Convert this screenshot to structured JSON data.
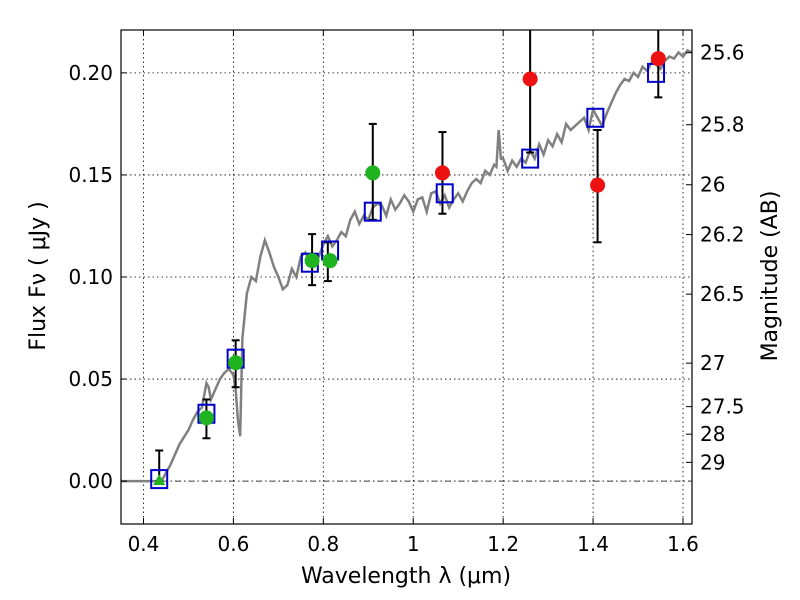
{
  "chart_data": {
    "type": "scatter",
    "xlabel": "Wavelength  λ (μm)",
    "ylabel": "Flux  Fν ( μJy )",
    "ylabel_right": "Magnitude (AB)",
    "xlim": [
      0.35,
      1.62
    ],
    "ylim": [
      -0.021,
      0.221
    ],
    "x_ticks": [
      0.4,
      0.6,
      0.8,
      1.0,
      1.2,
      1.4,
      1.6
    ],
    "x_tick_labels": [
      "0.4",
      "0.6",
      "0.8",
      "1",
      "1.2",
      "1.4",
      "1.6"
    ],
    "y_ticks": [
      0.0,
      0.05,
      0.1,
      0.15,
      0.2
    ],
    "y_tick_labels": [
      "0.00",
      "0.05",
      "0.10",
      "0.15",
      "0.20"
    ],
    "right_ticks": [
      {
        "label": "25.6",
        "flux": 0.2099
      },
      {
        "label": "25.8",
        "flux": 0.1746
      },
      {
        "label": "26",
        "flux": 0.1452
      },
      {
        "label": "26.2",
        "flux": 0.1208
      },
      {
        "label": "26.5",
        "flux": 0.0916
      },
      {
        "label": "27",
        "flux": 0.0578
      },
      {
        "label": "27.5",
        "flux": 0.0365
      },
      {
        "label": "28",
        "flux": 0.023
      },
      {
        "label": "29",
        "flux": 0.0092
      }
    ],
    "grid": true,
    "zero_line": 0.0,
    "model_spectrum": {
      "color": "#808080",
      "x": [
        0.35,
        0.43,
        0.44,
        0.46,
        0.48,
        0.5,
        0.51,
        0.52,
        0.53,
        0.54,
        0.545,
        0.55,
        0.56,
        0.57,
        0.58,
        0.59,
        0.6,
        0.605,
        0.61,
        0.615,
        0.62,
        0.63,
        0.64,
        0.65,
        0.66,
        0.67,
        0.68,
        0.69,
        0.7,
        0.71,
        0.72,
        0.73,
        0.74,
        0.75,
        0.76,
        0.77,
        0.78,
        0.79,
        0.8,
        0.81,
        0.82,
        0.83,
        0.84,
        0.85,
        0.86,
        0.87,
        0.88,
        0.89,
        0.9,
        0.91,
        0.92,
        0.93,
        0.94,
        0.95,
        0.96,
        0.97,
        0.98,
        0.99,
        1.0,
        1.01,
        1.02,
        1.03,
        1.04,
        1.05,
        1.06,
        1.07,
        1.08,
        1.09,
        1.1,
        1.11,
        1.12,
        1.13,
        1.14,
        1.15,
        1.16,
        1.17,
        1.18,
        1.185,
        1.19,
        1.195,
        1.2,
        1.21,
        1.22,
        1.23,
        1.24,
        1.25,
        1.26,
        1.27,
        1.28,
        1.29,
        1.3,
        1.31,
        1.32,
        1.33,
        1.34,
        1.35,
        1.36,
        1.37,
        1.38,
        1.39,
        1.4,
        1.41,
        1.42,
        1.43,
        1.44,
        1.45,
        1.46,
        1.47,
        1.48,
        1.49,
        1.5,
        1.51,
        1.52,
        1.53,
        1.54,
        1.55,
        1.56,
        1.57,
        1.58,
        1.59,
        1.6,
        1.61,
        1.62
      ],
      "y": [
        0.0,
        0.0,
        0.0,
        0.008,
        0.018,
        0.025,
        0.03,
        0.034,
        0.036,
        0.048,
        0.046,
        0.04,
        0.045,
        0.05,
        0.053,
        0.055,
        0.052,
        0.045,
        0.03,
        0.022,
        0.07,
        0.092,
        0.1,
        0.098,
        0.11,
        0.118,
        0.112,
        0.105,
        0.1,
        0.094,
        0.096,
        0.104,
        0.1,
        0.11,
        0.112,
        0.108,
        0.106,
        0.11,
        0.116,
        0.12,
        0.115,
        0.118,
        0.122,
        0.12,
        0.128,
        0.132,
        0.126,
        0.13,
        0.128,
        0.134,
        0.136,
        0.135,
        0.13,
        0.138,
        0.133,
        0.136,
        0.14,
        0.137,
        0.132,
        0.138,
        0.139,
        0.132,
        0.141,
        0.142,
        0.136,
        0.14,
        0.134,
        0.138,
        0.141,
        0.137,
        0.142,
        0.146,
        0.148,
        0.146,
        0.152,
        0.15,
        0.155,
        0.154,
        0.172,
        0.158,
        0.158,
        0.152,
        0.157,
        0.154,
        0.158,
        0.156,
        0.162,
        0.158,
        0.165,
        0.16,
        0.167,
        0.164,
        0.17,
        0.166,
        0.175,
        0.172,
        0.174,
        0.176,
        0.178,
        0.172,
        0.182,
        0.178,
        0.174,
        0.18,
        0.185,
        0.19,
        0.194,
        0.197,
        0.196,
        0.2,
        0.198,
        0.203,
        0.201,
        0.205,
        0.204,
        0.202,
        0.206,
        0.208,
        0.207,
        0.21,
        0.208,
        0.211,
        0.21
      ]
    },
    "error_bars": [
      {
        "x": 0.435,
        "low": 0.0,
        "high": 0.015
      },
      {
        "x": 0.54,
        "low": 0.021,
        "high": 0.04
      },
      {
        "x": 0.605,
        "low": 0.046,
        "high": 0.069
      },
      {
        "x": 0.775,
        "low": 0.096,
        "high": 0.121
      },
      {
        "x": 0.81,
        "low": 0.098,
        "high": 0.117
      },
      {
        "x": 0.91,
        "low": 0.128,
        "high": 0.175
      },
      {
        "x": 1.065,
        "low": 0.131,
        "high": 0.171
      },
      {
        "x": 1.26,
        "low": 0.161,
        "high": 0.221
      },
      {
        "x": 1.41,
        "low": 0.117,
        "high": 0.172
      },
      {
        "x": 1.545,
        "low": 0.188,
        "high": 0.221
      }
    ],
    "model_boxes": {
      "color": "#0000cc",
      "points": [
        {
          "x": 0.435,
          "y": 0.001
        },
        {
          "x": 0.54,
          "y": 0.033
        },
        {
          "x": 0.605,
          "y": 0.06
        },
        {
          "x": 0.77,
          "y": 0.107
        },
        {
          "x": 0.815,
          "y": 0.113
        },
        {
          "x": 0.91,
          "y": 0.132
        },
        {
          "x": 1.07,
          "y": 0.141
        },
        {
          "x": 1.26,
          "y": 0.158
        },
        {
          "x": 1.405,
          "y": 0.178
        },
        {
          "x": 1.54,
          "y": 0.2
        }
      ]
    },
    "green_points": {
      "color": "#1fb41f",
      "points": [
        {
          "x": 0.54,
          "y": 0.031
        },
        {
          "x": 0.605,
          "y": 0.058
        },
        {
          "x": 0.775,
          "y": 0.108
        },
        {
          "x": 0.815,
          "y": 0.108
        },
        {
          "x": 0.91,
          "y": 0.151
        }
      ]
    },
    "green_triangle": {
      "color": "#1fb41f",
      "x": 0.435,
      "y": 0.0
    },
    "red_points": {
      "color": "#ee1111",
      "points": [
        {
          "x": 1.065,
          "y": 0.151
        },
        {
          "x": 1.26,
          "y": 0.197
        },
        {
          "x": 1.41,
          "y": 0.145
        },
        {
          "x": 1.545,
          "y": 0.207
        }
      ]
    }
  }
}
